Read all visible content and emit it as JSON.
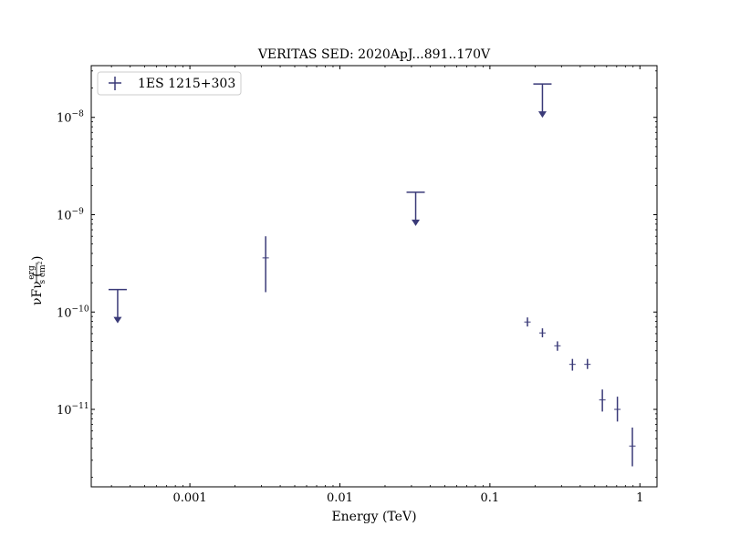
{
  "chart_data": {
    "type": "scatter",
    "title": "VERITAS SED: 2020ApJ...891..170V",
    "xlabel": "Energy (TeV)",
    "ylabel": {
      "main": "νFν (",
      "frac_num": "erg",
      "frac_den_a": "s cm",
      "frac_den_exp": "2",
      "close": ")"
    },
    "xscale": "log",
    "yscale": "log",
    "xlim": [
      0.00022,
      1.3
    ],
    "ylim": [
      1.6e-12,
      3.4e-08
    ],
    "x_ticks": [
      {
        "value": 0.001,
        "label": "0.001"
      },
      {
        "value": 0.01,
        "label": "0.01"
      },
      {
        "value": 0.1,
        "label": "0.1"
      },
      {
        "value": 1,
        "label": "1"
      }
    ],
    "y_ticks": [
      {
        "value": 1e-11,
        "base": "10",
        "exp": "−11"
      },
      {
        "value": 1e-10,
        "base": "10",
        "exp": "−10"
      },
      {
        "value": 1e-09,
        "base": "10",
        "exp": "−9"
      },
      {
        "value": 1e-08,
        "base": "10",
        "exp": "−8"
      }
    ],
    "legend": {
      "position": "top-left",
      "entries": [
        "1ES 1215+303"
      ]
    },
    "grid": false,
    "color": "#3a3a78",
    "series": [
      {
        "name": "1ES 1215+303",
        "points": [
          {
            "x": 0.00033,
            "y": 1.7e-10,
            "upper_limit": true
          },
          {
            "x": 0.0032,
            "y": 3.6e-10,
            "y_low": 1.6e-10,
            "y_high": 6e-10
          },
          {
            "x": 0.032,
            "y": 1.7e-09,
            "upper_limit": true
          },
          {
            "x": 0.178,
            "y": 7.9e-11,
            "y_low": 7.1e-11,
            "y_high": 8.8e-11
          },
          {
            "x": 0.224,
            "y": 2.2e-08,
            "upper_limit": true
          },
          {
            "x": 0.224,
            "y": 6.1e-11,
            "y_low": 5.5e-11,
            "y_high": 6.8e-11
          },
          {
            "x": 0.282,
            "y": 4.5e-11,
            "y_low": 4e-11,
            "y_high": 5e-11
          },
          {
            "x": 0.355,
            "y": 2.9e-11,
            "y_low": 2.5e-11,
            "y_high": 3.3e-11
          },
          {
            "x": 0.447,
            "y": 2.9e-11,
            "y_low": 2.6e-11,
            "y_high": 3.3e-11
          },
          {
            "x": 0.562,
            "y": 1.25e-11,
            "y_low": 9.5e-12,
            "y_high": 1.6e-11
          },
          {
            "x": 0.708,
            "y": 1e-11,
            "y_low": 7.5e-12,
            "y_high": 1.35e-11
          },
          {
            "x": 0.891,
            "y": 4.2e-12,
            "y_low": 2.6e-12,
            "y_high": 6.5e-12
          }
        ]
      }
    ]
  }
}
